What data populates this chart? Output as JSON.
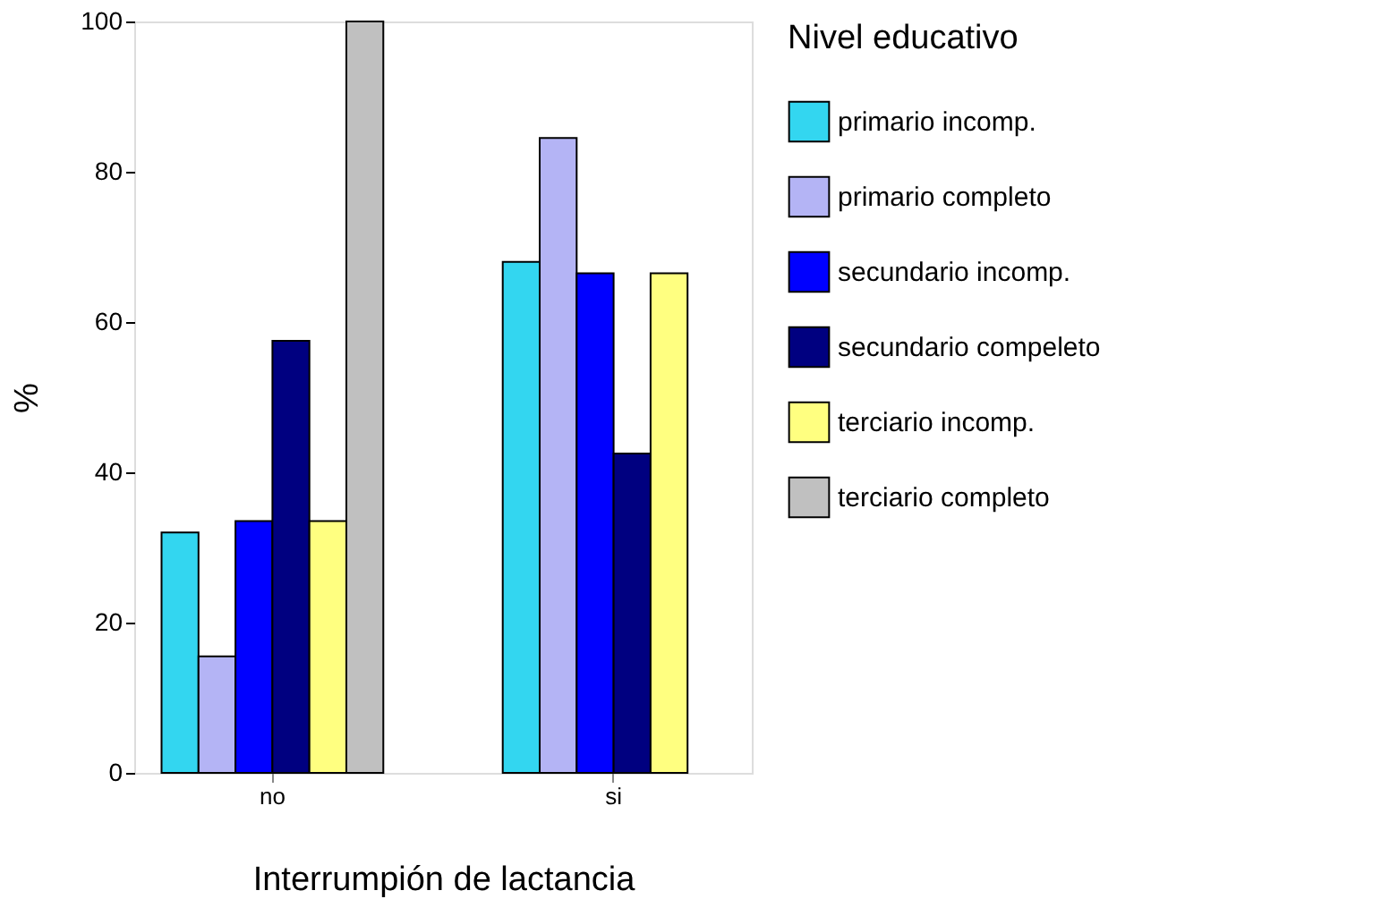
{
  "chart_data": {
    "type": "bar",
    "xlabel": "Interrumpión de lactancia",
    "ylabel": "%",
    "legend_title": "Nivel educativo",
    "legend": "right",
    "grid": false,
    "categories": [
      "no",
      "si"
    ],
    "ylim": [
      0,
      100
    ],
    "yticks": [
      0,
      20,
      40,
      60,
      80,
      100
    ],
    "series": [
      {
        "name": "primario incomp.",
        "color": "#33d6f0",
        "values": [
          32,
          68
        ]
      },
      {
        "name": "primario completo",
        "color": "#b4b4f5",
        "values": [
          15.5,
          84.5
        ]
      },
      {
        "name": "secundario incomp.",
        "color": "#0000ff",
        "values": [
          33.5,
          66.5
        ]
      },
      {
        "name": "secundario compeleto",
        "color": "#000080",
        "values": [
          57.5,
          42.5
        ]
      },
      {
        "name": "terciario incomp.",
        "color": "#ffff80",
        "values": [
          33.5,
          66.5
        ]
      },
      {
        "name": "terciario completo",
        "color": "#c0c0c0",
        "values": [
          100,
          null
        ]
      }
    ]
  }
}
